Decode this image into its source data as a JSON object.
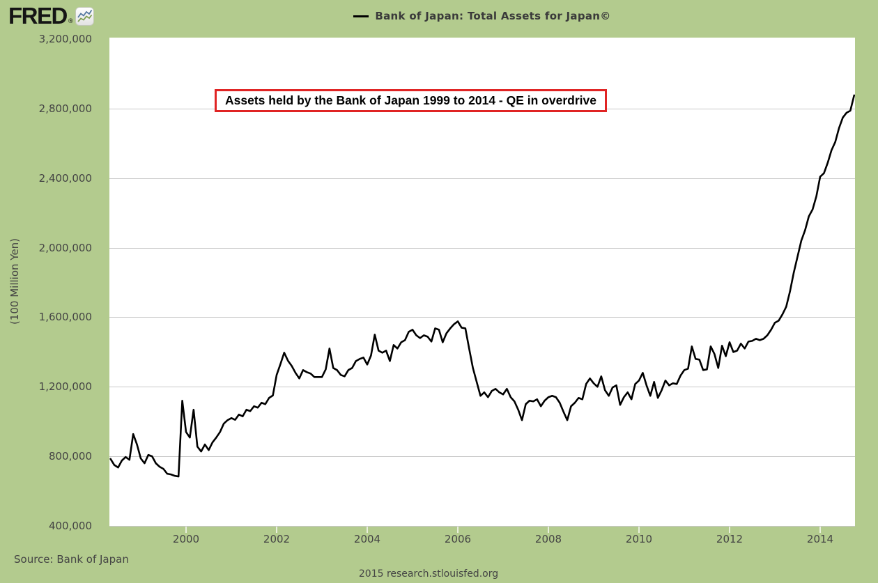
{
  "logo": {
    "text": "FRED",
    "registered": "®",
    "icon": "fred-sparkline-icon"
  },
  "legend": {
    "label": "Bank of Japan: Total Assets for Japan©",
    "swatch_color": "#000000"
  },
  "annotation": {
    "text": "Assets held by the Bank of Japan 1999 to 2014 - QE in overdrive",
    "border_color": "#e02424"
  },
  "source": "Source: Bank of Japan",
  "footer": "2015 research.stlouisfed.org",
  "colors": {
    "background": "#b3cb8e",
    "plot_background": "#ffffff",
    "gridline": "#c8c8c8",
    "line": "#000000",
    "text": "#444444"
  },
  "chart_data": {
    "type": "line",
    "title": "Bank of Japan: Total Assets for Japan©",
    "ylabel": "(100 Million Yen)",
    "ylim": [
      400000,
      3200000
    ],
    "y_ticks": [
      400000,
      800000,
      1200000,
      1600000,
      2000000,
      2400000,
      2800000,
      3200000
    ],
    "x_ticks": [
      2000,
      2002,
      2004,
      2006,
      2008,
      2010,
      2012,
      2014
    ],
    "xlim_years": [
      1998.33,
      2014.83
    ],
    "grid": "horizontal",
    "legend_position": "top-center",
    "series": [
      {
        "name": "Bank of Japan: Total Assets for Japan©",
        "color": "#000000",
        "frequency": "monthly",
        "start_year": 1998,
        "start_month": 5,
        "values": [
          785000,
          750000,
          736000,
          776000,
          796000,
          780000,
          928000,
          868000,
          788000,
          760000,
          808000,
          800000,
          760000,
          740000,
          728000,
          700000,
          696000,
          688000,
          684000,
          1120000,
          940000,
          908000,
          1068000,
          856000,
          828000,
          868000,
          836000,
          880000,
          908000,
          940000,
          988000,
          1008000,
          1020000,
          1010000,
          1040000,
          1030000,
          1068000,
          1060000,
          1088000,
          1080000,
          1108000,
          1100000,
          1136000,
          1150000,
          1268000,
          1330000,
          1396000,
          1350000,
          1320000,
          1280000,
          1248000,
          1296000,
          1284000,
          1276000,
          1256000,
          1256000,
          1256000,
          1300000,
          1420000,
          1308000,
          1296000,
          1268000,
          1260000,
          1296000,
          1308000,
          1348000,
          1360000,
          1368000,
          1328000,
          1380000,
          1500000,
          1408000,
          1396000,
          1408000,
          1348000,
          1440000,
          1420000,
          1456000,
          1468000,
          1516000,
          1528000,
          1496000,
          1480000,
          1496000,
          1488000,
          1460000,
          1536000,
          1528000,
          1456000,
          1508000,
          1536000,
          1560000,
          1576000,
          1540000,
          1536000,
          1420000,
          1308000,
          1228000,
          1148000,
          1168000,
          1140000,
          1176000,
          1188000,
          1168000,
          1156000,
          1188000,
          1140000,
          1116000,
          1068000,
          1008000,
          1100000,
          1120000,
          1116000,
          1128000,
          1088000,
          1120000,
          1140000,
          1148000,
          1140000,
          1108000,
          1056000,
          1008000,
          1088000,
          1108000,
          1136000,
          1128000,
          1216000,
          1248000,
          1220000,
          1200000,
          1260000,
          1180000,
          1148000,
          1196000,
          1208000,
          1096000,
          1140000,
          1168000,
          1128000,
          1216000,
          1236000,
          1280000,
          1208000,
          1148000,
          1228000,
          1136000,
          1180000,
          1236000,
          1208000,
          1220000,
          1216000,
          1264000,
          1296000,
          1304000,
          1432000,
          1360000,
          1356000,
          1296000,
          1300000,
          1432000,
          1388000,
          1308000,
          1436000,
          1376000,
          1456000,
          1400000,
          1408000,
          1448000,
          1420000,
          1460000,
          1464000,
          1476000,
          1468000,
          1476000,
          1496000,
          1528000,
          1568000,
          1580000,
          1616000,
          1660000,
          1748000,
          1856000,
          1948000,
          2040000,
          2100000,
          2180000,
          2220000,
          2296000,
          2408000,
          2428000,
          2488000,
          2560000,
          2608000,
          2688000,
          2748000,
          2776000,
          2788000,
          2876000
        ]
      }
    ]
  }
}
